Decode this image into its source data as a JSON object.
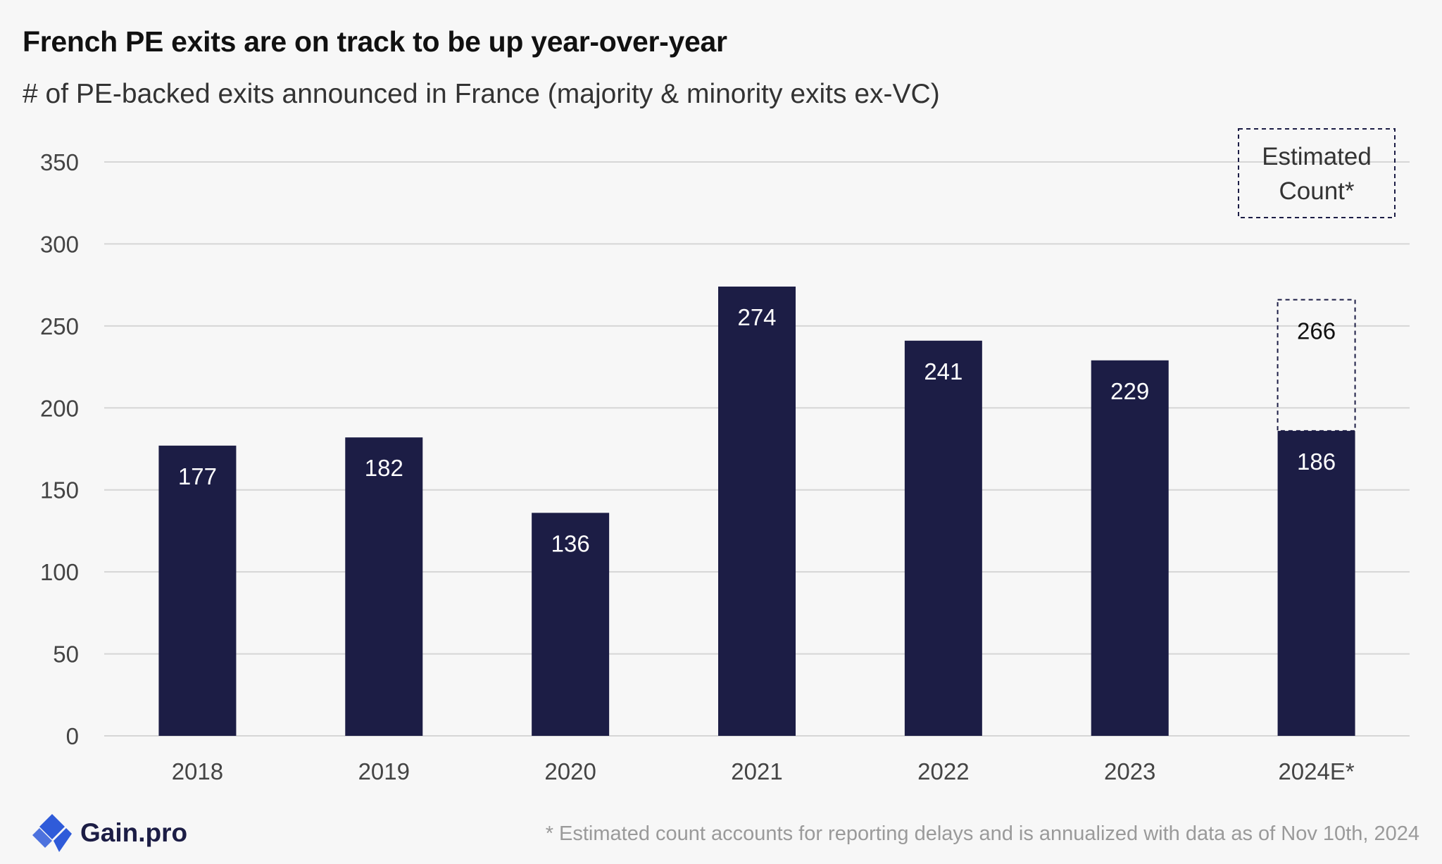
{
  "chart_data": {
    "type": "bar",
    "title": "French PE exits are on track to be up year-over-year",
    "subtitle": "# of PE-backed exits announced in France (majority & minority exits ex-VC)",
    "categories": [
      "2018",
      "2019",
      "2020",
      "2021",
      "2022",
      "2023",
      "2024E*"
    ],
    "series": [
      {
        "values": [
          177,
          182,
          136,
          274,
          241,
          229,
          186
        ]
      }
    ],
    "estimated": {
      "category": "2024E*",
      "value": 266
    },
    "value_labels": [
      "177",
      "182",
      "136",
      "274",
      "241",
      "229",
      "186"
    ],
    "estimated_label": "266",
    "yticks": [
      0,
      50,
      100,
      150,
      200,
      250,
      300,
      350
    ],
    "ylim": [
      0,
      350
    ],
    "grid": true,
    "legend": {
      "lines": [
        "Estimated",
        "Count*"
      ],
      "placement": "top-right"
    },
    "colors": {
      "bar": "#1c1d45",
      "grid": "#d6d6d6",
      "estimate_border": "#1c1d45"
    }
  },
  "brand": {
    "name": "Gain.pro",
    "colors": {
      "mark": "#2f5bd9"
    }
  },
  "footnote": "* Estimated count accounts for reporting delays and is annualized with data as of Nov 10th, 2024"
}
